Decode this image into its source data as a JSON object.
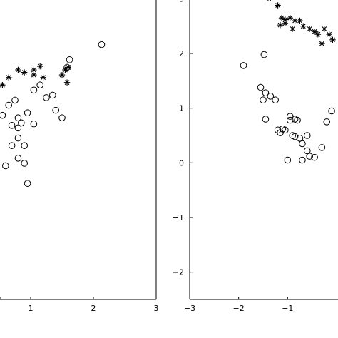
{
  "chart_data": [
    {
      "type": "scatter",
      "title": "",
      "xlabel": "",
      "ylabel": "",
      "xlim": [
        0,
        3
      ],
      "ylim": [
        -3,
        3.5
      ],
      "xticks": [
        "1",
        "2",
        "3"
      ],
      "xtick_values": [
        1,
        2,
        3
      ],
      "yticks": [],
      "grid": false,
      "series": [
        {
          "marker": "star",
          "points": [
            [
              0.35,
              1.1
            ],
            [
              0.45,
              1.2
            ],
            [
              0.55,
              1.25
            ],
            [
              0.65,
              1.4
            ],
            [
              0.8,
              1.55
            ],
            [
              0.9,
              1.5
            ],
            [
              1.05,
              1.55
            ],
            [
              1.15,
              1.62
            ],
            [
              1.05,
              1.45
            ],
            [
              1.2,
              1.4
            ],
            [
              1.5,
              1.45
            ],
            [
              1.55,
              1.55
            ],
            [
              1.58,
              1.3
            ],
            [
              1.6,
              1.6
            ]
          ]
        },
        {
          "marker": "circle",
          "points": [
            [
              2.13,
              2.05
            ],
            [
              1.62,
              1.75
            ],
            [
              1.58,
              1.6
            ],
            [
              1.05,
              1.15
            ],
            [
              1.25,
              1.0
            ],
            [
              1.35,
              1.05
            ],
            [
              1.15,
              1.25
            ],
            [
              0.75,
              0.95
            ],
            [
              0.65,
              0.85
            ],
            [
              0.45,
              0.75
            ],
            [
              0.55,
              0.65
            ],
            [
              0.8,
              0.6
            ],
            [
              1.4,
              0.75
            ],
            [
              1.5,
              0.6
            ],
            [
              0.2,
              0.55
            ],
            [
              0.35,
              0.45
            ],
            [
              0.85,
              0.5
            ],
            [
              0.95,
              0.7
            ],
            [
              0.7,
              0.45
            ],
            [
              0.8,
              0.4
            ],
            [
              0.8,
              0.2
            ],
            [
              1.05,
              0.48
            ],
            [
              0.15,
              0.3
            ],
            [
              0.25,
              0.15
            ],
            [
              0.9,
              0.05
            ],
            [
              0.7,
              0.05
            ],
            [
              0.8,
              -0.2
            ],
            [
              0.6,
              -0.35
            ],
            [
              0.4,
              -0.6
            ],
            [
              0.3,
              -0.6
            ],
            [
              0.2,
              -0.45
            ],
            [
              0.9,
              -0.3
            ],
            [
              0.95,
              -0.7
            ],
            [
              0.1,
              -0.8
            ]
          ]
        }
      ]
    },
    {
      "type": "scatter",
      "title": "",
      "xlabel": "",
      "ylabel": "",
      "xlim": [
        -3,
        0.35
      ],
      "ylim": [
        -2.5,
        3.5
      ],
      "xticks": [
        "−3",
        "−2",
        "−1"
      ],
      "xtick_values": [
        -3,
        -2,
        -1
      ],
      "yticks": [
        "−2",
        "−1",
        "0",
        "1",
        "2",
        "3"
      ],
      "ytick_values": [
        -2,
        -1,
        0,
        1,
        2,
        3
      ],
      "grid": false,
      "series": [
        {
          "marker": "star",
          "points": [
            [
              -1.4,
              3.02
            ],
            [
              -1.35,
              3.02
            ],
            [
              -1.2,
              2.88
            ],
            [
              -1.12,
              2.65
            ],
            [
              -1.05,
              2.62
            ],
            [
              -0.95,
              2.65
            ],
            [
              -0.85,
              2.6
            ],
            [
              -0.75,
              2.6
            ],
            [
              -0.68,
              2.5
            ],
            [
              -0.55,
              2.45
            ],
            [
              -0.45,
              2.4
            ],
            [
              -0.38,
              2.35
            ],
            [
              -0.25,
              2.45
            ],
            [
              -0.15,
              2.35
            ],
            [
              -0.08,
              2.25
            ],
            [
              -0.3,
              2.18
            ],
            [
              -1.05,
              2.55
            ],
            [
              -1.15,
              2.52
            ],
            [
              -0.9,
              2.45
            ]
          ]
        },
        {
          "marker": "circle",
          "points": [
            [
              -1.9,
              1.78
            ],
            [
              -1.48,
              1.98
            ],
            [
              -1.55,
              1.38
            ],
            [
              -1.45,
              1.28
            ],
            [
              -1.35,
              1.22
            ],
            [
              -1.25,
              1.15
            ],
            [
              -1.5,
              1.15
            ],
            [
              -1.45,
              0.8
            ],
            [
              -0.95,
              0.85
            ],
            [
              -0.85,
              0.8
            ],
            [
              -0.95,
              0.78
            ],
            [
              -0.8,
              0.78
            ],
            [
              -1.1,
              0.62
            ],
            [
              -1.2,
              0.6
            ],
            [
              -1.15,
              0.55
            ],
            [
              -1.05,
              0.6
            ],
            [
              -0.9,
              0.5
            ],
            [
              -0.85,
              0.48
            ],
            [
              -0.75,
              0.45
            ],
            [
              -0.6,
              0.5
            ],
            [
              -0.7,
              0.35
            ],
            [
              -0.6,
              0.22
            ],
            [
              -0.55,
              0.12
            ],
            [
              -1.0,
              0.05
            ],
            [
              -0.7,
              0.05
            ],
            [
              -0.45,
              0.1
            ],
            [
              -0.3,
              0.28
            ],
            [
              -0.2,
              0.75
            ],
            [
              -0.1,
              0.95
            ]
          ]
        }
      ]
    }
  ]
}
